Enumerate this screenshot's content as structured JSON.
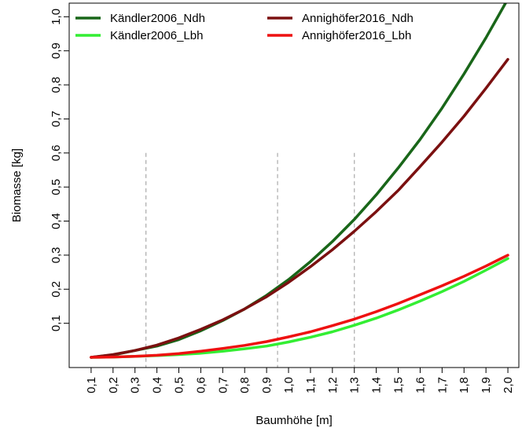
{
  "chart_data": {
    "type": "line",
    "xlabel": "Baumhöhe [m]",
    "ylabel": "Biomasse [kg]",
    "xlim": [
      0.0,
      2.05
    ],
    "ylim": [
      -0.03,
      1.04
    ],
    "x_ticks": [
      0.1,
      0.2,
      0.3,
      0.4,
      0.5,
      0.6,
      0.7,
      0.8,
      0.9,
      1.0,
      1.1,
      1.2,
      1.3,
      1.4,
      1.5,
      1.6,
      1.7,
      1.8,
      1.9,
      2.0
    ],
    "x_tick_labels": [
      "0,1",
      "0,2",
      "0,3",
      "0,4",
      "0,5",
      "0,6",
      "0,7",
      "0,8",
      "0,9",
      "1,0",
      "1,1",
      "1,2",
      "1,3",
      "1,4",
      "1,5",
      "1,6",
      "1,7",
      "1,8",
      "1,9",
      "2,0"
    ],
    "y_ticks": [
      0.1,
      0.2,
      0.3,
      0.4,
      0.5,
      0.6,
      0.7,
      0.8,
      0.9,
      1.0
    ],
    "y_tick_labels": [
      "0,1",
      "0,2",
      "0,3",
      "0,4",
      "0,5",
      "0,6",
      "0,7",
      "0,8",
      "0,9",
      "1,0"
    ],
    "x": [
      0.1,
      0.2,
      0.3,
      0.4,
      0.5,
      0.6,
      0.7,
      0.8,
      0.9,
      1.0,
      1.1,
      1.2,
      1.3,
      1.4,
      1.5,
      1.6,
      1.7,
      1.8,
      1.9,
      2.0
    ],
    "vlines": [
      0.35,
      0.95,
      1.3
    ],
    "legend_placement": "top",
    "series": [
      {
        "name": "Kändler2006_Ndh",
        "color": "#196619",
        "values": [
          0.0,
          0.007,
          0.02,
          0.033,
          0.052,
          0.078,
          0.108,
          0.142,
          0.182,
          0.228,
          0.281,
          0.34,
          0.405,
          0.477,
          0.556,
          0.64,
          0.732,
          0.832,
          0.938,
          1.052
        ]
      },
      {
        "name": "Kändler2006_Lbh",
        "color": "#33ee33",
        "values": [
          0.0,
          0.001,
          0.003,
          0.005,
          0.008,
          0.012,
          0.018,
          0.025,
          0.033,
          0.045,
          0.059,
          0.075,
          0.094,
          0.115,
          0.139,
          0.165,
          0.193,
          0.223,
          0.256,
          0.29
        ]
      },
      {
        "name": "Annighöfer2016_Ndh",
        "color": "#7b1010",
        "values": [
          0.0,
          0.008,
          0.02,
          0.036,
          0.057,
          0.082,
          0.11,
          0.142,
          0.178,
          0.22,
          0.266,
          0.316,
          0.37,
          0.428,
          0.49,
          0.56,
          0.632,
          0.708,
          0.79,
          0.875
        ]
      },
      {
        "name": "Annighöfer2016_Lbh",
        "color": "#ee1111",
        "values": [
          0.0,
          0.001,
          0.003,
          0.006,
          0.011,
          0.018,
          0.026,
          0.035,
          0.046,
          0.06,
          0.075,
          0.093,
          0.112,
          0.134,
          0.158,
          0.184,
          0.21,
          0.238,
          0.268,
          0.3
        ]
      }
    ]
  }
}
